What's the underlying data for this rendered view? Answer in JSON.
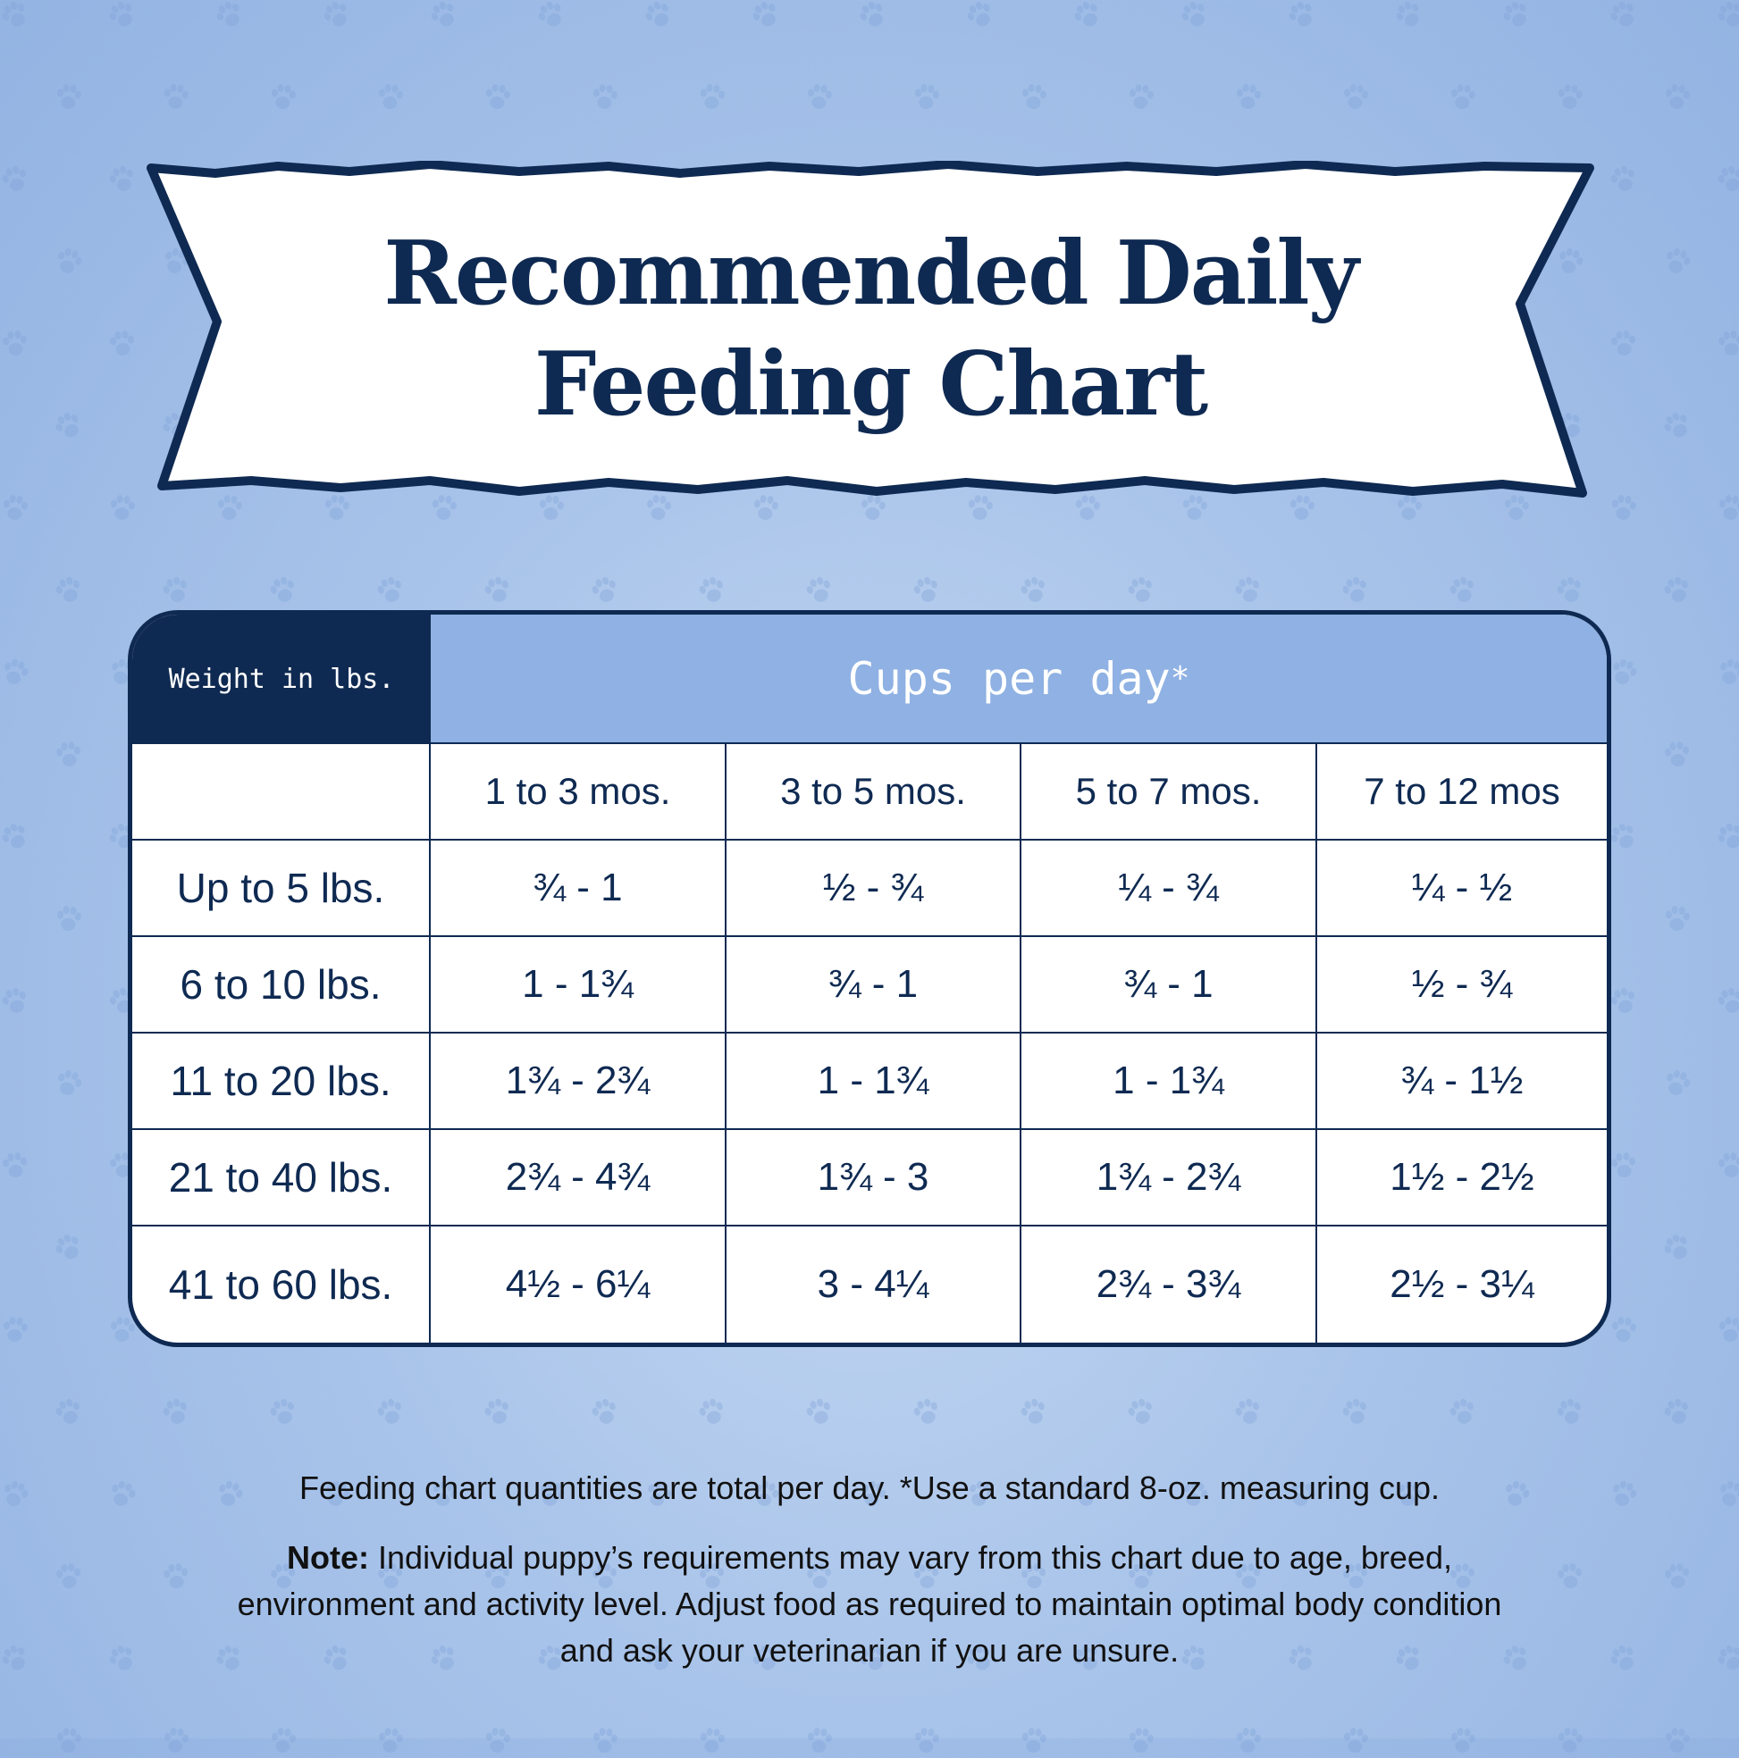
{
  "title": {
    "line1": "Recommended Daily",
    "line2": "Feeding Chart"
  },
  "colors": {
    "navy": "#0f2a52",
    "header_blue": "#8fb1e3",
    "background": "#a9c4ea"
  },
  "background_icon": "paw-print-icon",
  "table": {
    "weight_header": "Weight in lbs.",
    "cups_header": "Cups per day",
    "cups_header_mark": "*",
    "columns": [
      "1 to 3 mos.",
      "3 to 5 mos.",
      "5 to 7 mos.",
      "7 to 12 mos"
    ],
    "rows": [
      {
        "weight": "Up to 5 lbs.",
        "values": [
          "¾ - 1",
          "½ - ¾",
          "¼ - ¾",
          "¼ - ½"
        ]
      },
      {
        "weight": "6 to 10 lbs.",
        "values": [
          "1 - 1¾",
          "¾ - 1",
          "¾ - 1",
          "½ - ¾"
        ]
      },
      {
        "weight": "11 to 20 lbs.",
        "values": [
          "1¾ - 2¾",
          "1 - 1¾",
          "1 - 1¾",
          "¾ - 1½"
        ]
      },
      {
        "weight": "21 to 40 lbs.",
        "values": [
          "2¾ - 4¾",
          "1¾ - 3",
          "1¾ - 2¾",
          "1½ - 2½"
        ]
      },
      {
        "weight": "41 to 60 lbs.",
        "values": [
          "4½ - 6¼",
          "3 - 4¼",
          "2¾ - 3¾",
          "2½ - 3¼"
        ]
      }
    ]
  },
  "footer": {
    "line1": "Feeding chart quantities are total per day. *Use a standard 8-oz. measuring cup.",
    "note_label": "Note:",
    "note_text": " Individual puppy’s requirements may vary from this chart due to age, breed, environment and activity level. Adjust food as required to maintain optimal body condition and ask  your veterinarian if you are unsure."
  }
}
